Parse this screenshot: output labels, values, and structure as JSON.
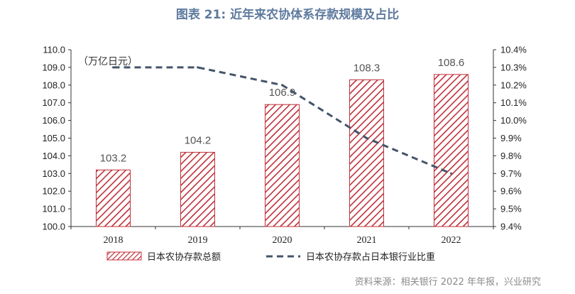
{
  "title": "图表 21: 近年来农协体系存款规模及占比",
  "source": "资料来源：相关银行 2022 年年报，兴业研究",
  "unit_label": "（万亿日元）",
  "colors": {
    "bar": "#c0303a",
    "line": "#44546a",
    "title": "#5e7a9e"
  },
  "chart_data": {
    "type": "bar",
    "categories": [
      "2018",
      "2019",
      "2020",
      "2021",
      "2022"
    ],
    "series": [
      {
        "name": "日本农协存款总额",
        "type": "bar",
        "axis": "left",
        "values": [
          103.2,
          104.2,
          106.9,
          108.3,
          108.6
        ],
        "labels": [
          "103.2",
          "104.2",
          "106.9",
          "108.3",
          "108.6"
        ]
      },
      {
        "name": "日本农协存款占日本银行业比重",
        "type": "line",
        "style": "dashed",
        "axis": "right",
        "values": [
          10.3,
          10.3,
          10.2,
          9.9,
          9.7
        ]
      }
    ],
    "ylim": [
      100,
      110
    ],
    "y_ticks": [
      "100.0",
      "101.0",
      "102.0",
      "103.0",
      "104.0",
      "105.0",
      "106.0",
      "107.0",
      "108.0",
      "109.0",
      "110.0"
    ],
    "y2lim": [
      9.4,
      10.4
    ],
    "y2_ticks": [
      "9.4%",
      "9.5%",
      "9.6%",
      "9.7%",
      "9.8%",
      "9.9%",
      "10.0%",
      "10.1%",
      "10.2%",
      "10.3%",
      "10.4%"
    ],
    "legend_position": "bottom",
    "grid": false
  }
}
